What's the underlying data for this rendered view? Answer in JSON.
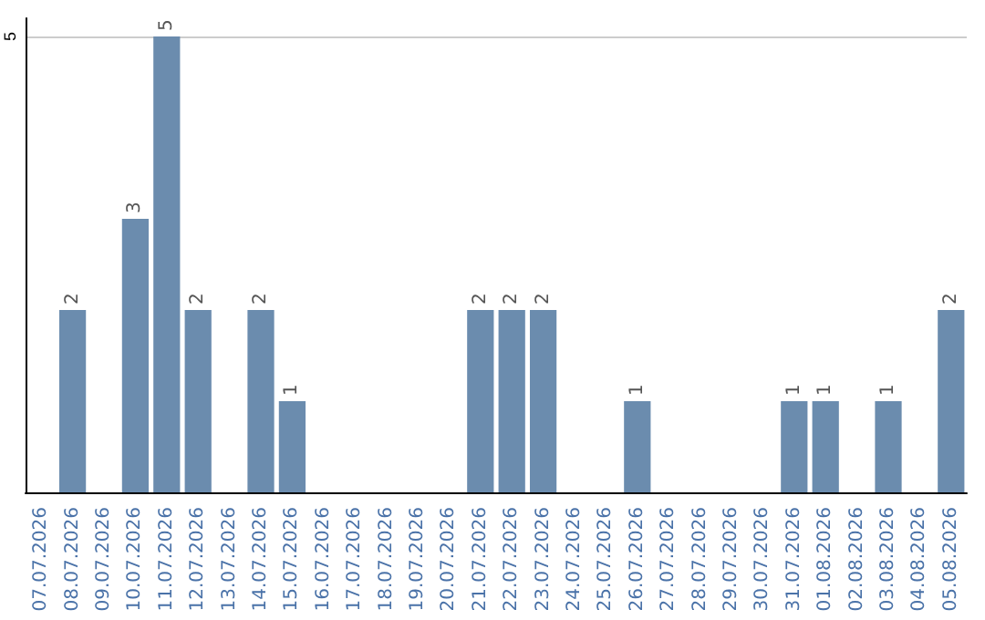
{
  "chart_data": {
    "type": "bar",
    "categories": [
      "07.07.2026",
      "08.07.2026",
      "09.07.2026",
      "10.07.2026",
      "11.07.2026",
      "12.07.2026",
      "13.07.2026",
      "14.07.2026",
      "15.07.2026",
      "16.07.2026",
      "17.07.2026",
      "18.07.2026",
      "19.07.2026",
      "20.07.2026",
      "21.07.2026",
      "22.07.2026",
      "23.07.2026",
      "24.07.2026",
      "25.07.2026",
      "26.07.2026",
      "27.07.2026",
      "28.07.2026",
      "29.07.2026",
      "30.07.2026",
      "31.07.2026",
      "01.08.2026",
      "02.08.2026",
      "03.08.2026",
      "04.08.2026",
      "05.08.2026"
    ],
    "values": [
      0,
      2,
      0,
      3,
      5,
      2,
      0,
      2,
      1,
      0,
      0,
      0,
      0,
      0,
      2,
      2,
      2,
      0,
      0,
      1,
      0,
      0,
      0,
      0,
      1,
      1,
      0,
      1,
      0,
      2
    ],
    "value_labels": [
      null,
      "2",
      null,
      "3",
      "5",
      "2",
      null,
      "2",
      "1",
      null,
      null,
      null,
      null,
      null,
      "2",
      "2",
      "2",
      null,
      null,
      "1",
      null,
      null,
      null,
      null,
      "1",
      "1",
      null,
      "1",
      null,
      "2"
    ],
    "color": "#6b8cae",
    "ylim": [
      0,
      5.2
    ],
    "yticks": [
      5
    ],
    "grid": "y"
  }
}
